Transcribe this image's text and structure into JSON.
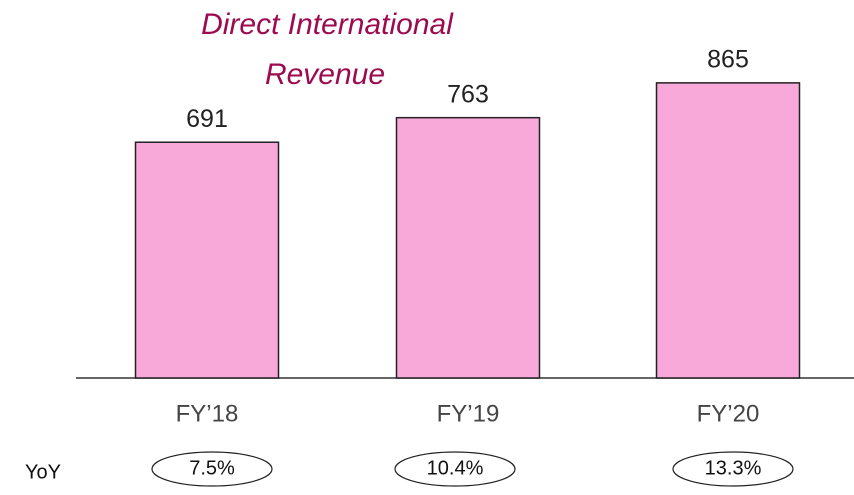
{
  "chart_data": {
    "type": "bar",
    "title": [
      "Direct International",
      "Revenue"
    ],
    "categories": [
      "FY’18",
      "FY’19",
      "FY’20"
    ],
    "values": [
      691,
      763,
      865
    ],
    "color": "#f9a8da",
    "yoy": {
      "label": "YoY",
      "values": [
        7.5,
        10.4,
        13.3
      ],
      "value_labels": [
        "7.5%",
        "10.4%",
        "13.3%"
      ]
    }
  }
}
